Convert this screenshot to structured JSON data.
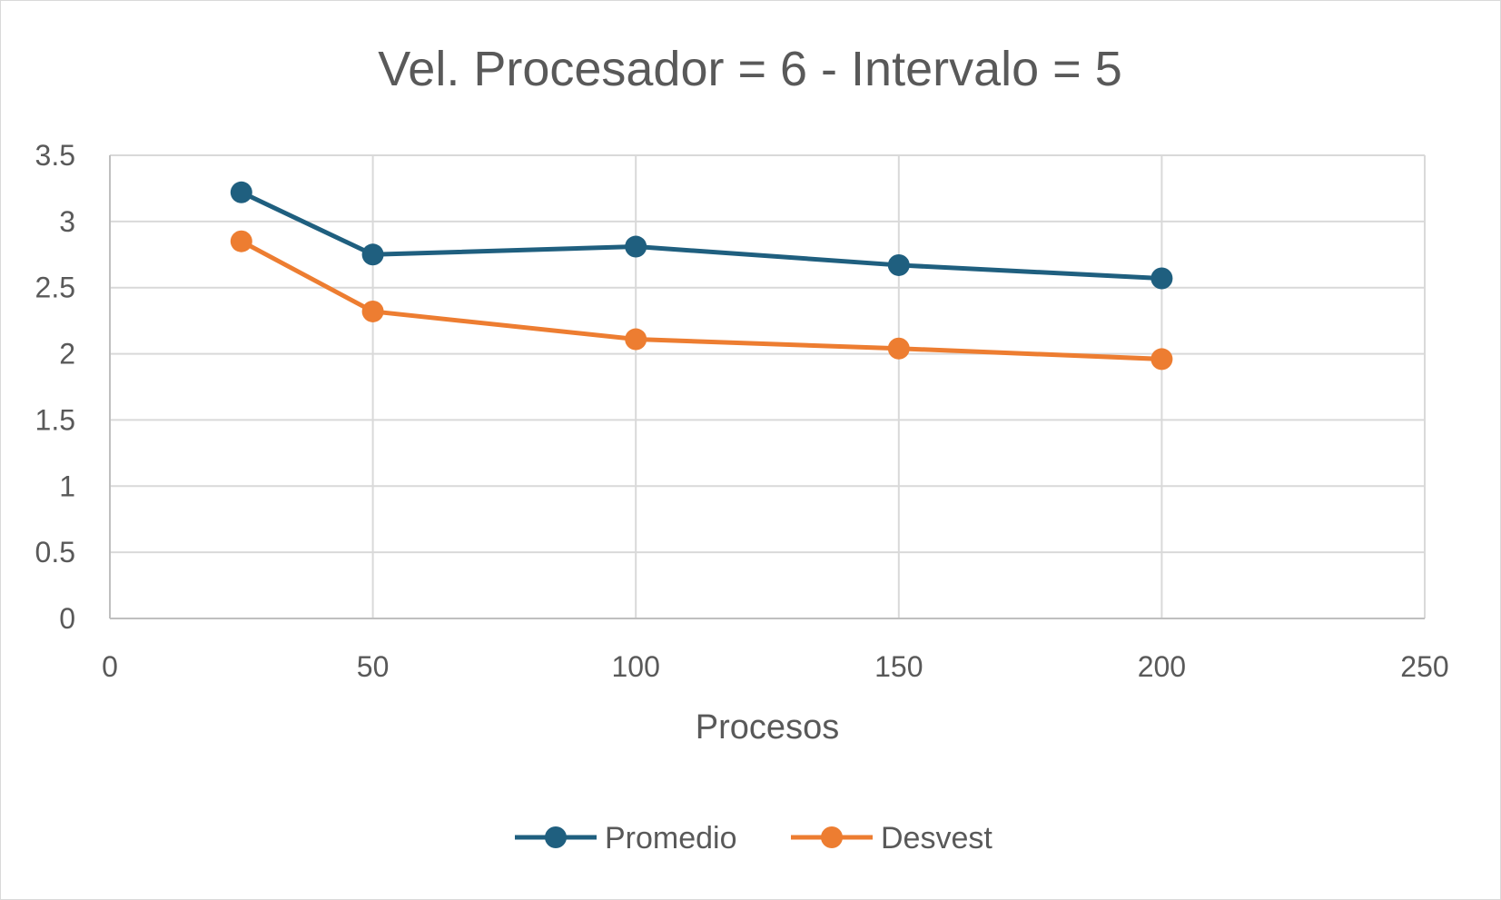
{
  "chart_data": {
    "type": "scatter",
    "title": "Vel. Procesador = 6 - Intervalo = 5",
    "xlabel": "Procesos",
    "ylabel": "",
    "xlim": [
      0,
      250
    ],
    "ylim": [
      0,
      3.5
    ],
    "x_ticks": [
      "0",
      "50",
      "100",
      "150",
      "200",
      "250"
    ],
    "y_ticks": [
      "0",
      "0.5",
      "1",
      "1.5",
      "2",
      "2.5",
      "3",
      "3.5"
    ],
    "x_tick_values": [
      0,
      50,
      100,
      150,
      200,
      250
    ],
    "y_tick_values": [
      0,
      0.5,
      1,
      1.5,
      2,
      2.5,
      3,
      3.5
    ],
    "grid": true,
    "legend_position": "bottom",
    "x": [
      25,
      50,
      100,
      150,
      200
    ],
    "series": [
      {
        "name": "Promedio",
        "color": "#1f5f7f",
        "values": [
          3.22,
          2.75,
          2.81,
          2.67,
          2.57
        ]
      },
      {
        "name": "Desvest",
        "color": "#ed7d31",
        "values": [
          2.85,
          2.32,
          2.11,
          2.04,
          1.96
        ]
      }
    ]
  }
}
